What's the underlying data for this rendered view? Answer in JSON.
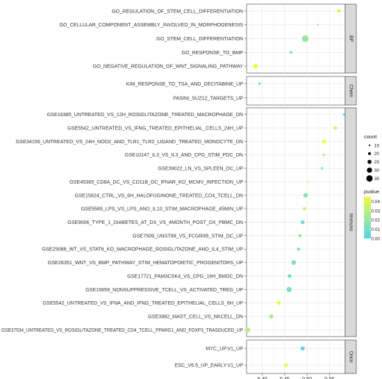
{
  "chart_data": {
    "type": "scatter",
    "xlim": [
      0.365,
      0.585
    ],
    "xticks": [
      "0.40",
      "0.45",
      "0.50",
      "0.55"
    ],
    "xtick_values": [
      0.4,
      0.45,
      0.5,
      0.55
    ],
    "grid": true,
    "legend_position": "right",
    "legends": {
      "count": {
        "title": "count",
        "values": [
          15,
          20,
          25,
          30,
          35
        ],
        "labels": [
          "15",
          "20",
          "25",
          "30",
          "35"
        ]
      },
      "pvalue": {
        "title": "pvalue",
        "range": [
          0.0,
          0.045
        ],
        "ticks": [
          0.04,
          0.03,
          0.02,
          0.01,
          0.0
        ],
        "labels": [
          "0.04",
          "0.03",
          "0.02",
          "0.01",
          "0.00"
        ],
        "color_low": "#4fd6ef",
        "color_high": "#f1fb41"
      }
    },
    "facets": [
      {
        "name": "BP",
        "points": [
          {
            "term": "GO_REGULATION_OF_STEM_CELL_DIFFERENTIATION",
            "x": 0.571,
            "count": 22,
            "pvalue": 0.038
          },
          {
            "term": "GO_CELLULAR_COMPONENT_ASSEMBLY_INVOLVED_IN_MORPHOGENESIS",
            "x": 0.524,
            "count": 16,
            "pvalue": 0.018
          },
          {
            "term": "GO_STEM_CELL_DIFFERENTIATION",
            "x": 0.496,
            "count": 36,
            "pvalue": 0.02
          },
          {
            "term": "GO_RESPONSE_TO_BMP",
            "x": 0.464,
            "count": 20,
            "pvalue": 0.012
          },
          {
            "term": "GO_NEGATIVE_REGULATION_OF_WNT_SIGNALING_PATHWAY",
            "x": 0.385,
            "count": 28,
            "pvalue": 0.044
          }
        ]
      },
      {
        "name": "Chem",
        "points": [
          {
            "term": "KIM_RESPONSE_TO_TSA_AND_DECITABINE_UP",
            "x": 0.394,
            "count": 18,
            "pvalue": 0.002
          },
          {
            "term": "PASINI_SUZ12_TARGETS_UP",
            "x": 0.394,
            "count": 14,
            "pvalue": 0.042
          }
        ]
      },
      {
        "name": "Immuno",
        "points": [
          {
            "term": "GSE16385_UNTREATED_VS_12H_ROSIGLITAZONE_TREATED_MACROPHAGE_DN",
            "x": 0.582,
            "count": 17,
            "pvalue": 0.002
          },
          {
            "term": "GSE5542_UNTREATED_VS_IFNG_TREATED_EPITHELIAL_CELLS_24H_UP",
            "x": 0.563,
            "count": 23,
            "pvalue": 0.035
          },
          {
            "term": "GSE34156_UNTREATED_VS_24H_NOD2_AND_TLR1_TLR2_LIGAND_TREATED_MONOCYTE_DN",
            "x": 0.538,
            "count": 25,
            "pvalue": 0.044
          },
          {
            "term": "GSE10147_IL3_VS_IL3_AND_CPG_STIM_PDC_DN",
            "x": 0.537,
            "count": 18,
            "pvalue": 0.026
          },
          {
            "term": "GSE39022_LN_VS_SPLEEN_DC_UP",
            "x": 0.533,
            "count": 18,
            "pvalue": 0.012
          },
          {
            "term": "GSE45365_CD8A_DC_VS_CD11B_DC_IFNAR_KO_MCMV_INFECTION_UP",
            "x": 0.503,
            "count": 16,
            "pvalue": 0.042
          },
          {
            "term": "GSE15624_CTRL_VS_6H_HALOFUGINONE_TREATED_CD4_TCELL_DN",
            "x": 0.497,
            "count": 28,
            "pvalue": 0.016
          },
          {
            "term": "GSE5589_LPS_VS_LPS_AND_IL10_STIM_MACROPHAGE_45MIN_UP",
            "x": 0.494,
            "count": 22,
            "pvalue": 0.034
          },
          {
            "term": "GSE9006_TYPE_1_DIABETES_AT_DX_VS_4MONTH_POST_DX_PBMC_DN",
            "x": 0.49,
            "count": 25,
            "pvalue": 0.01
          },
          {
            "term": "GSE7509_UNSTIM_VS_FCGRIIB_STIM_DC_UP",
            "x": 0.484,
            "count": 22,
            "pvalue": 0.022
          },
          {
            "term": "GSE25088_WT_VS_STAT6_KO_MACROPHAGE_ROSIGLITAZONE_AND_IL4_STIM_UP",
            "x": 0.481,
            "count": 21,
            "pvalue": 0.006
          },
          {
            "term": "GSE26351_WNT_VS_BMP_PATHWAY_STIM_HEMATOPOIETIC_PROGENITORS_UP",
            "x": 0.47,
            "count": 28,
            "pvalue": 0.014
          },
          {
            "term": "GSE17721_PAM3CSK4_VS_CPG_16H_BMDC_DN",
            "x": 0.461,
            "count": 24,
            "pvalue": 0.008
          },
          {
            "term": "GSE15659_NONSUPPRESSIVE_TCELL_VS_ACTIVATED_TREG_UP",
            "x": 0.46,
            "count": 30,
            "pvalue": 0.012
          },
          {
            "term": "GSE5542_UNTREATED_VS_IFNA_AND_IFNG_TREATED_EPITHELIAL_CELLS_6H_UP",
            "x": 0.437,
            "count": 25,
            "pvalue": 0.042
          },
          {
            "term": "GSE3982_MAST_CELL_VS_NKCELL_DN",
            "x": 0.42,
            "count": 26,
            "pvalue": 0.026
          },
          {
            "term": "GSE37534_UNTREATED_VS_ROSIGLITAZONE_TREATED_CD4_TCELL_PPARG1_AND_FOXP3_TRASDUCED_UP",
            "x": 0.368,
            "count": 28,
            "pvalue": 0.03
          }
        ]
      },
      {
        "name": "Onco",
        "points": [
          {
            "term": "MYC_UP.V1_UP",
            "x": 0.49,
            "count": 26,
            "pvalue": 0.004
          },
          {
            "term": "ESC_V6.5_UP_EARLY.V1_UP",
            "x": 0.453,
            "count": 25,
            "pvalue": 0.042
          }
        ]
      }
    ]
  }
}
